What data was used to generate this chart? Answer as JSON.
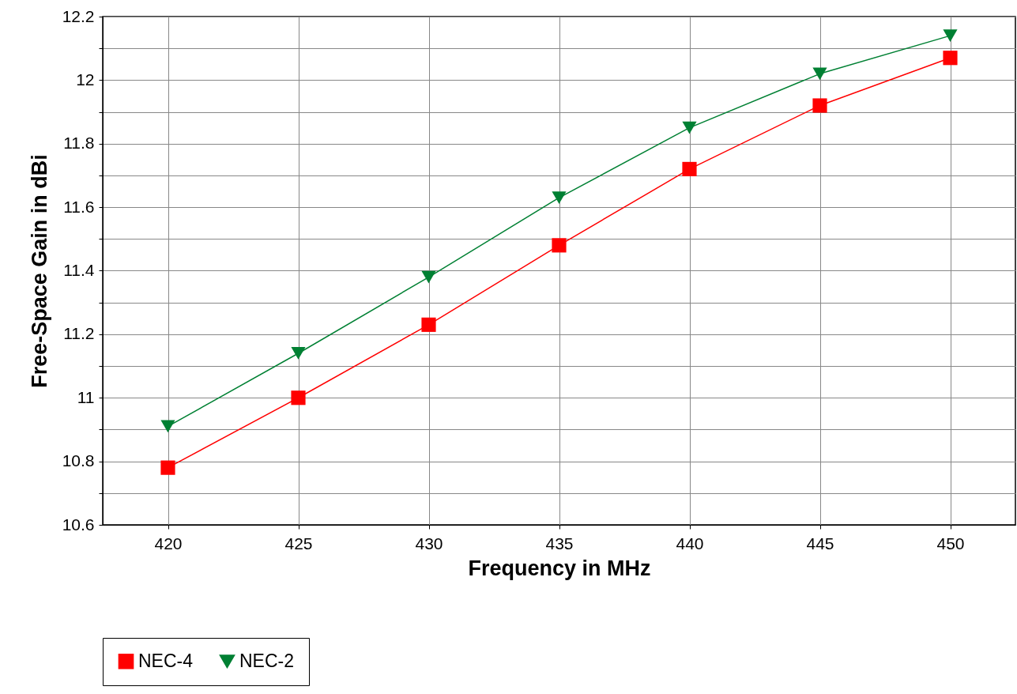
{
  "chart_data": {
    "type": "line",
    "xlabel": "Frequency in MHz",
    "ylabel": "Free-Space Gain in dBi",
    "x": [
      420,
      425,
      430,
      435,
      440,
      445,
      450
    ],
    "series": [
      {
        "name": "NEC-4",
        "color": "#ff0000",
        "marker": "square",
        "values": [
          10.78,
          11.0,
          11.23,
          11.48,
          11.72,
          11.92,
          12.07
        ]
      },
      {
        "name": "NEC-2",
        "color": "#008033",
        "marker": "triangle-down",
        "values": [
          10.91,
          11.14,
          11.38,
          11.63,
          11.85,
          12.02,
          12.14
        ]
      }
    ],
    "xlim": [
      417.5,
      452.5
    ],
    "xticks": [
      420,
      425,
      430,
      435,
      440,
      445,
      450
    ],
    "ylim": [
      10.6,
      12.2
    ],
    "yticks": [
      10.6,
      {
        "value": 10.7,
        "label": null
      },
      10.8,
      {
        "value": 10.9,
        "label": null
      },
      11,
      {
        "value": 11.1,
        "label": null
      },
      11.2,
      {
        "value": 11.3,
        "label": null
      },
      11.4,
      {
        "value": 11.5,
        "label": null
      },
      11.6,
      {
        "value": 11.7,
        "label": null
      },
      11.8,
      {
        "value": 11.9,
        "label": null
      },
      12,
      {
        "value": 12.1,
        "label": null
      },
      12.2
    ],
    "grid": true,
    "legend": "bottom",
    "line_style": "solid"
  }
}
